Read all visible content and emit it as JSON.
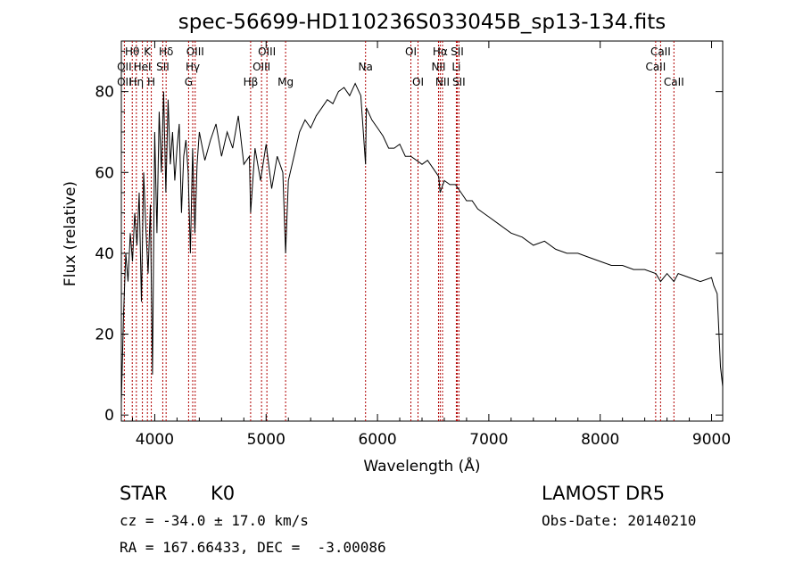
{
  "chart_data": {
    "type": "line",
    "title": "spec-56699-HD110236S033045B_sp13-134.fits",
    "xlabel": "Wavelength (Å)",
    "ylabel": "Flux (relative)",
    "xlim": [
      3700,
      9100
    ],
    "ylim": [
      -1.5,
      92.5
    ],
    "xticks": [
      4000,
      5000,
      6000,
      7000,
      8000,
      9000
    ],
    "yticks": [
      0,
      20,
      40,
      60,
      80
    ],
    "grid": false,
    "series": [
      {
        "values_description_omitted": true,
        "x": [
          3700,
          3720,
          3740,
          3760,
          3780,
          3800,
          3820,
          3840,
          3860,
          3880,
          3900,
          3920,
          3940,
          3960,
          3980,
          4000,
          4020,
          4040,
          4060,
          4080,
          4100,
          4120,
          4140,
          4160,
          4180,
          4200,
          4220,
          4240,
          4260,
          4280,
          4300,
          4320,
          4340,
          4360,
          4380,
          4400,
          4450,
          4500,
          4550,
          4600,
          4650,
          4700,
          4750,
          4800,
          4850,
          4861,
          4900,
          4950,
          5000,
          5050,
          5100,
          5150,
          5175,
          5200,
          5250,
          5300,
          5350,
          5400,
          5450,
          5500,
          5550,
          5600,
          5650,
          5700,
          5750,
          5800,
          5850,
          5893,
          5900,
          5950,
          6000,
          6050,
          6100,
          6150,
          6200,
          6250,
          6300,
          6350,
          6400,
          6450,
          6500,
          6550,
          6563,
          6600,
          6650,
          6700,
          6750,
          6800,
          6850,
          6900,
          6950,
          7000,
          7100,
          7200,
          7300,
          7400,
          7500,
          7600,
          7700,
          7800,
          7900,
          8000,
          8100,
          8200,
          8300,
          8400,
          8500,
          8542,
          8600,
          8662,
          8700,
          8800,
          8900,
          9000,
          9020,
          9050,
          9080,
          9100
        ],
        "y": [
          3,
          25,
          40,
          33,
          45,
          38,
          50,
          42,
          55,
          28,
          60,
          46,
          35,
          52,
          10,
          70,
          45,
          75,
          60,
          80,
          55,
          78,
          62,
          70,
          58,
          66,
          72,
          50,
          64,
          68,
          60,
          40,
          66,
          45,
          62,
          70,
          63,
          68,
          72,
          64,
          70,
          66,
          74,
          62,
          64,
          50,
          66,
          58,
          67,
          56,
          64,
          60,
          40,
          58,
          64,
          70,
          73,
          71,
          74,
          76,
          78,
          77,
          80,
          81,
          79,
          82,
          79,
          62,
          76,
          73,
          71,
          69,
          66,
          66,
          67,
          64,
          64,
          63,
          62,
          63,
          61,
          59,
          55,
          58,
          57,
          57,
          55,
          53,
          53,
          51,
          50,
          49,
          47,
          45,
          44,
          42,
          43,
          41,
          40,
          40,
          39,
          38,
          37,
          37,
          36,
          36,
          35,
          33,
          35,
          33,
          35,
          34,
          33,
          34,
          32,
          30,
          12,
          7
        ]
      }
    ],
    "lines": [
      {
        "label": "Hθ",
        "x": 3798,
        "row": 1
      },
      {
        "label": "OII",
        "x": 3727,
        "row": 2
      },
      {
        "label": "OII",
        "x": 3727,
        "row": 3
      },
      {
        "label": "Hη",
        "x": 3835,
        "row": 3
      },
      {
        "label": "K",
        "x": 3934,
        "row": 1
      },
      {
        "label": "HeI",
        "x": 3889,
        "row": 2
      },
      {
        "label": "H",
        "x": 3969,
        "row": 3
      },
      {
        "label": "Hδ",
        "x": 4102,
        "row": 1
      },
      {
        "label": "SII",
        "x": 4072,
        "row": 2
      },
      {
        "label": "OIII",
        "x": 4363,
        "row": 1
      },
      {
        "label": "Hγ",
        "x": 4341,
        "row": 2
      },
      {
        "label": "G",
        "x": 4304,
        "row": 3
      },
      {
        "label": "OIII",
        "x": 5007,
        "row": 1
      },
      {
        "label": "OIII",
        "x": 4959,
        "row": 2
      },
      {
        "label": "Hβ",
        "x": 4861,
        "row": 3
      },
      {
        "label": "Mg",
        "x": 5175,
        "row": 3
      },
      {
        "label": "Na",
        "x": 5893,
        "row": 2
      },
      {
        "label": "OI",
        "x": 6300,
        "row": 1
      },
      {
        "label": "OI",
        "x": 6364,
        "row": 3
      },
      {
        "label": "Hα",
        "x": 6563,
        "row": 1
      },
      {
        "label": "SII",
        "x": 6716,
        "row": 1
      },
      {
        "label": "NII",
        "x": 6548,
        "row": 2
      },
      {
        "label": "Li",
        "x": 6708,
        "row": 2
      },
      {
        "label": "NII",
        "x": 6584,
        "row": 3
      },
      {
        "label": "SII",
        "x": 6731,
        "row": 3
      },
      {
        "label": "CaII",
        "x": 8542,
        "row": 1
      },
      {
        "label": "CaII",
        "x": 8498,
        "row": 2
      },
      {
        "label": "CaII",
        "x": 8662,
        "row": 3
      }
    ]
  },
  "footer": {
    "class": "STAR",
    "subclass": "K0",
    "survey": "LAMOST DR5",
    "cz": "cz = -34.0 ± 17.0 km/s",
    "obs_date": "Obs-Date: 20140210",
    "radec": "RA = 167.66433, DEC =  -3.00086"
  }
}
